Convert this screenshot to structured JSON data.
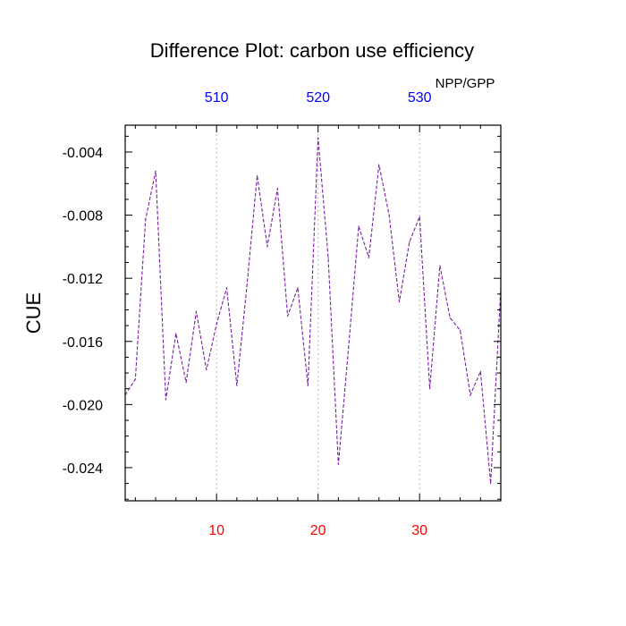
{
  "chart_data": {
    "type": "line",
    "title": "Difference Plot: carbon use efficiency",
    "ylabel": "CUE",
    "units_label": "NPP/GPP",
    "xlim": [
      1,
      38
    ],
    "ylim": [
      -0.0261,
      -0.0023
    ],
    "yticks": [
      -0.004,
      -0.008,
      -0.012,
      -0.016,
      -0.02,
      -0.024
    ],
    "ytick_labels": [
      "-0.004",
      "-0.008",
      "-0.012",
      "-0.016",
      "-0.020",
      "-0.024"
    ],
    "xticks_bottom": [
      10,
      20,
      30
    ],
    "xtick_labels_bottom": [
      "10",
      "20",
      "30"
    ],
    "xticks_top": [
      10,
      20,
      30
    ],
    "xtick_labels_top": [
      "510",
      "520",
      "530"
    ],
    "bottom_label_color": "#ff0000",
    "top_label_color": "#0000ff",
    "line_color": "#7a1fa2",
    "grid_x": true,
    "x": [
      1,
      2,
      3,
      4,
      5,
      6,
      7,
      8,
      9,
      10,
      11,
      12,
      13,
      14,
      15,
      16,
      17,
      18,
      19,
      20,
      21,
      22,
      23,
      24,
      25,
      26,
      27,
      28,
      29,
      30,
      31,
      32,
      33,
      34,
      35,
      36,
      37,
      38
    ],
    "y": [
      -0.0194,
      -0.0184,
      -0.0083,
      -0.0052,
      -0.0197,
      -0.0155,
      -0.0186,
      -0.0141,
      -0.0178,
      -0.0149,
      -0.0126,
      -0.0188,
      -0.0124,
      -0.0055,
      -0.01,
      -0.0063,
      -0.0144,
      -0.0126,
      -0.0188,
      -0.0031,
      -0.0107,
      -0.0238,
      -0.0164,
      -0.0087,
      -0.0107,
      -0.0048,
      -0.008,
      -0.0135,
      -0.0097,
      -0.0081,
      -0.019,
      -0.0112,
      -0.0145,
      -0.0153,
      -0.0194,
      -0.0179,
      -0.025,
      -0.0126
    ]
  }
}
